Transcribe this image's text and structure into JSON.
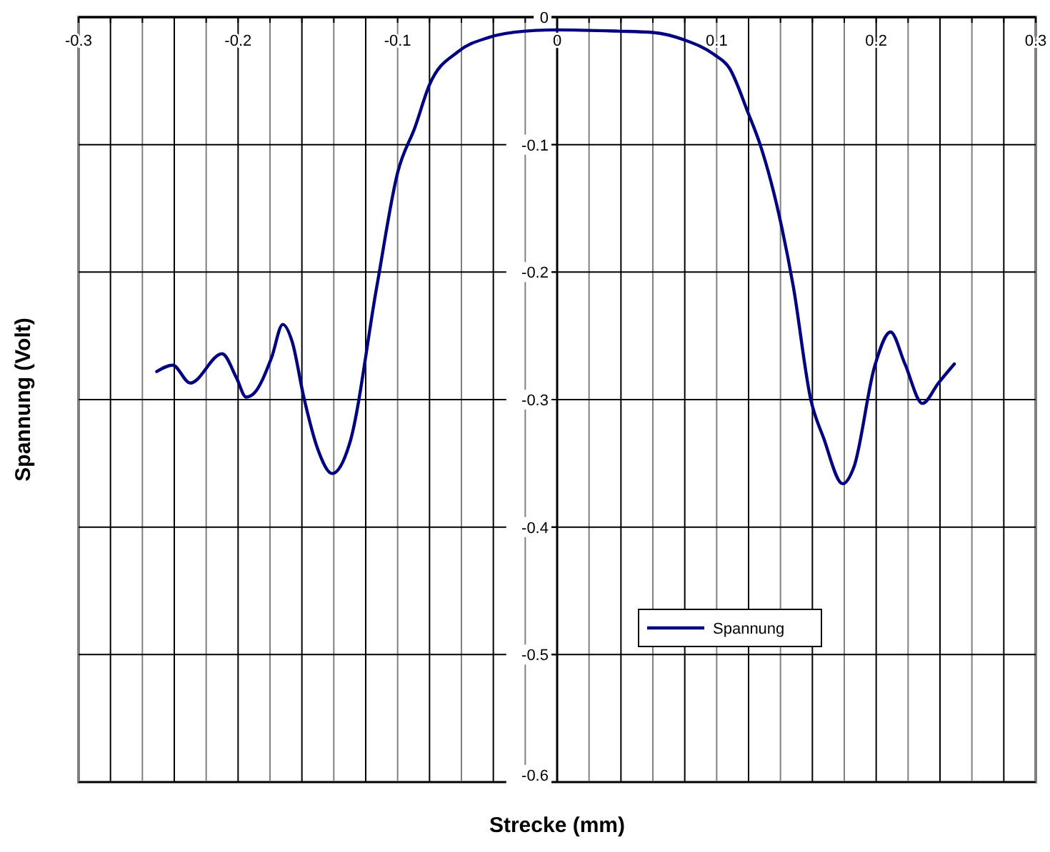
{
  "chart_data": {
    "type": "line",
    "xlabel": "Strecke (mm)",
    "ylabel": "Spannung (Volt)",
    "xlim": [
      -0.3,
      0.3
    ],
    "ylim": [
      -0.6,
      0
    ],
    "xticks": [
      -0.3,
      {
        "value": -0.28,
        "label": null
      },
      {
        "value": -0.26,
        "label": null
      },
      {
        "value": -0.24,
        "label": null
      },
      {
        "value": -0.22,
        "label": null
      },
      -0.2,
      {
        "value": -0.18,
        "label": null
      },
      {
        "value": -0.16,
        "label": null
      },
      {
        "value": -0.14,
        "label": null
      },
      {
        "value": -0.12,
        "label": null
      },
      -0.1,
      {
        "value": -0.08,
        "label": null
      },
      {
        "value": -0.06,
        "label": null
      },
      {
        "value": -0.04,
        "label": null
      },
      {
        "value": -0.02,
        "label": null
      },
      0,
      {
        "value": 0.02,
        "label": null
      },
      {
        "value": 0.04,
        "label": null
      },
      {
        "value": 0.06,
        "label": null
      },
      {
        "value": 0.08,
        "label": null
      },
      0.1,
      {
        "value": 0.12,
        "label": null
      },
      {
        "value": 0.14,
        "label": null
      },
      {
        "value": 0.16,
        "label": null
      },
      {
        "value": 0.18,
        "label": null
      },
      0.2,
      {
        "value": 0.22,
        "label": null
      },
      {
        "value": 0.24,
        "label": null
      },
      {
        "value": 0.26,
        "label": null
      },
      {
        "value": 0.28,
        "label": null
      },
      0.3
    ],
    "yticks": [
      0,
      -0.1,
      -0.2,
      -0.3,
      -0.4,
      -0.5,
      -0.6
    ],
    "grid": true,
    "legend": "bottom right",
    "line_style": "solid",
    "marker": "none",
    "series": [
      {
        "name": "Spannung",
        "color": "#000080",
        "x": [
          -0.251,
          -0.241,
          -0.23,
          -0.21,
          -0.201,
          -0.195,
          -0.19,
          -0.179,
          -0.172,
          -0.166,
          -0.159,
          -0.15,
          -0.141,
          -0.13,
          -0.113,
          -0.1,
          -0.089,
          -0.08,
          -0.062,
          -0.043,
          -0.02,
          0,
          0.038,
          0.06,
          0.08,
          0.098,
          0.108,
          0.12,
          0.127,
          0.141,
          0.148,
          0.159,
          0.167,
          0.179,
          0.186,
          0.199,
          0.209,
          0.218,
          0.229,
          0.239,
          0.249
        ],
        "values": [
          -0.278,
          -0.273,
          -0.287,
          -0.264,
          -0.283,
          -0.298,
          -0.295,
          -0.267,
          -0.241,
          -0.255,
          -0.297,
          -0.339,
          -0.358,
          -0.334,
          -0.211,
          -0.122,
          -0.086,
          -0.053,
          -0.027,
          -0.016,
          -0.011,
          -0.01,
          -0.011,
          -0.012,
          -0.018,
          -0.029,
          -0.04,
          -0.076,
          -0.099,
          -0.166,
          -0.211,
          -0.3,
          -0.33,
          -0.366,
          -0.353,
          -0.274,
          -0.247,
          -0.272,
          -0.303,
          -0.287,
          -0.272
        ]
      }
    ]
  }
}
